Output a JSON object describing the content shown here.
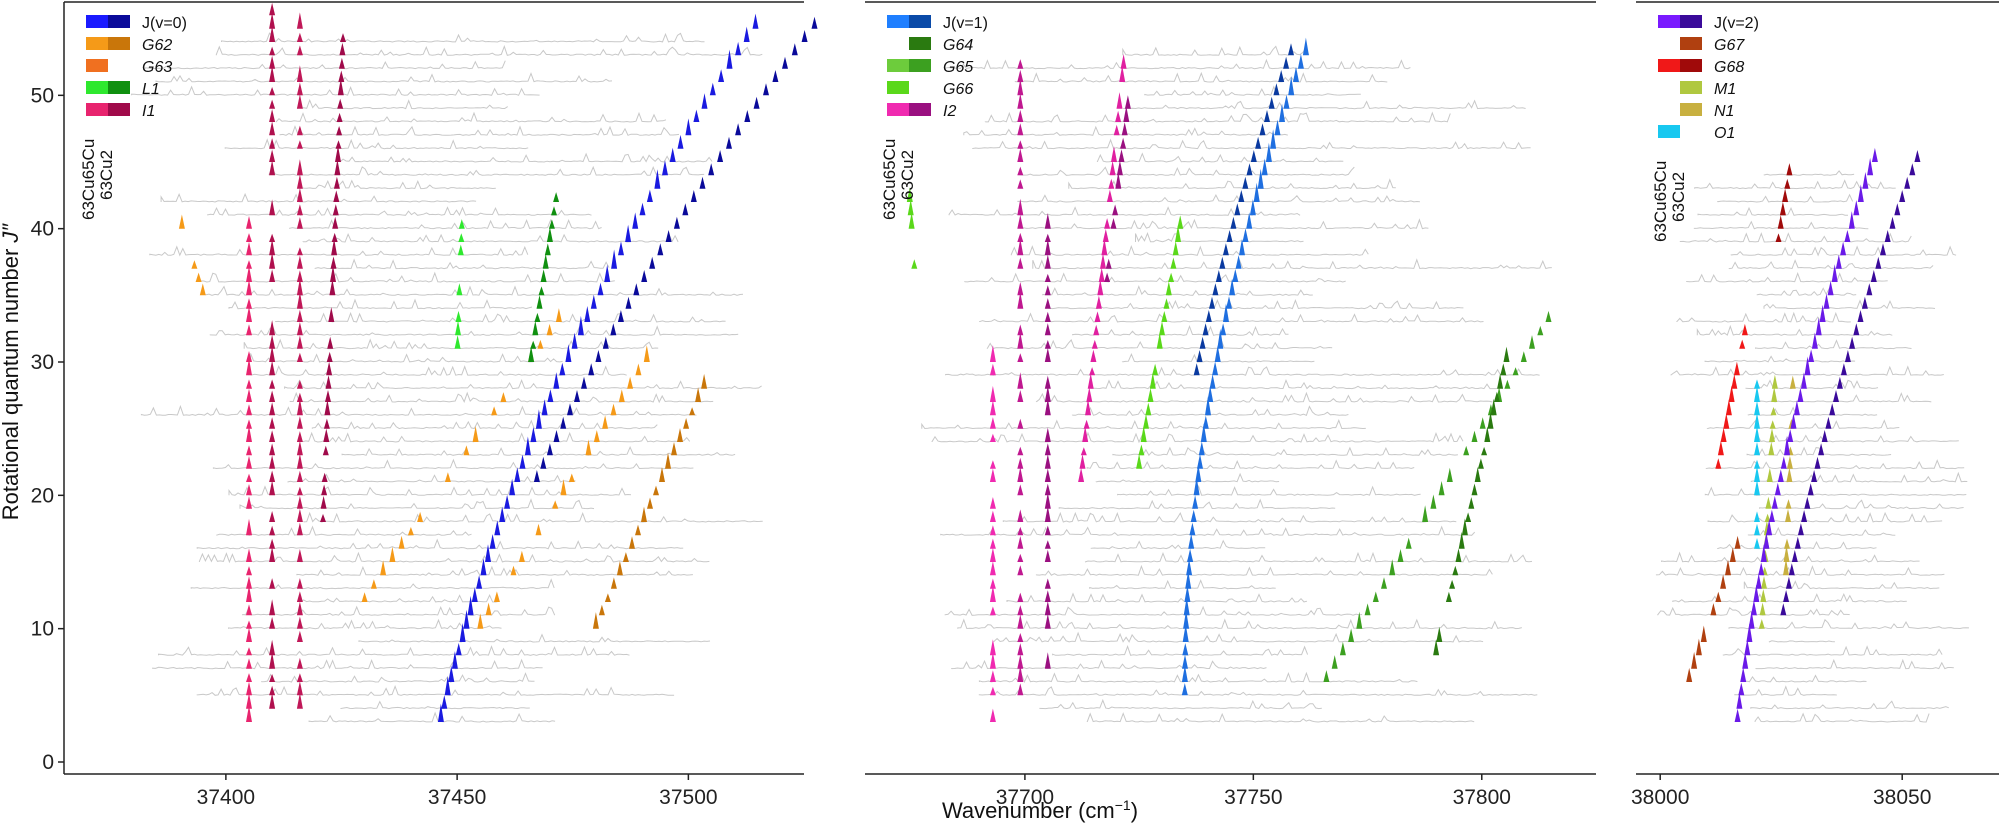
{
  "chart_data": {
    "type": "scatter",
    "description_axis": {
      "xlabel_main": "Wavenumber (cm",
      "xlabel_sup": "−1",
      "xlabel_end": ")",
      "ylabel_main": "Rotational quantum number ",
      "ylabel_J": "J″",
      "ylim": [
        0,
        57
      ],
      "yticks": [
        0,
        10,
        20,
        30,
        40,
        50
      ]
    },
    "panels": [
      {
        "xlim": [
          37365,
          37525
        ],
        "xticks": [
          37400,
          37450,
          37500
        ],
        "jrange": [
          3,
          54
        ],
        "band": {
          "name": "J(v=0)",
          "x0": 37446.5,
          "slope": 0.71,
          "curv": 0.0115,
          "jmin": 3,
          "jmax": 55,
          "color": "#1a1ae0",
          "color2": "#0a0a9a"
        },
        "legend": [
          {
            "label": "J(v=0)",
            "c1": "#1a1aff",
            "c2": "#0a0a9a",
            "italic": false
          },
          {
            "label": "G62",
            "c1": "#f59a18",
            "c2": "#c9760a",
            "italic": true
          },
          {
            "label": "G63",
            "c1": "#f07020",
            "c2": "",
            "italic": true
          },
          {
            "label": "L1",
            "c1": "#2ee82e",
            "c2": "#109010",
            "italic": true
          },
          {
            "label": "I1",
            "c1": "#e8246e",
            "c2": "#a00a4a",
            "italic": true
          }
        ],
        "iso_top": "63Cu65Cu",
        "iso_bottom": "63Cu2",
        "clusters": [
          {
            "x0": 37405,
            "dx": 0.0,
            "j0": 3,
            "j1": 40,
            "color": "#e8246e"
          },
          {
            "x0": 37410,
            "dx": 0.0,
            "j0": 3,
            "j1": 56,
            "color": "#b0104e"
          },
          {
            "x0": 37416,
            "dx": 0.0,
            "j0": 4,
            "j1": 55,
            "color": "#c01858"
          },
          {
            "x0": 37421,
            "dx": 0.12,
            "j0": 18,
            "j1": 54,
            "color": "#a00a4a"
          },
          {
            "x0": 37395,
            "dx": -0.9,
            "j0": 35,
            "j1": 40,
            "color": "#f59a18"
          },
          {
            "x0": 37430,
            "dx": 2.0,
            "j0": 12,
            "j1": 33,
            "color": "#f59a18"
          },
          {
            "x0": 37455,
            "dx": 1.8,
            "j0": 10,
            "j1": 30,
            "color": "#f59a18"
          },
          {
            "x0": 37480,
            "dx": 1.3,
            "j0": 10,
            "j1": 28,
            "color": "#c9760a"
          },
          {
            "x0": 37450,
            "dx": 0.1,
            "j0": 30,
            "j1": 40,
            "color": "#2ee82e"
          },
          {
            "x0": 37466,
            "dx": 0.45,
            "j0": 30,
            "j1": 42,
            "color": "#109010"
          }
        ]
      },
      {
        "xlim": [
          37665,
          37825
        ],
        "xticks": [
          37700,
          37750,
          37800
        ],
        "jrange": [
          3,
          53
        ],
        "band": {
          "name": "J(v=1)",
          "x0": 37735,
          "slope": 0.0,
          "curv": 0.0115,
          "jmin": 5,
          "jmax": 53,
          "color": "#1f6fe0",
          "color2": "#0a3aa0"
        },
        "legend": [
          {
            "label": "J(v=1)",
            "c1": "#1f7fff",
            "c2": "#0a4aa8",
            "italic": false
          },
          {
            "label": "G64",
            "c1": "",
            "c2": "#2a7a10",
            "italic": true
          },
          {
            "label": "G65",
            "c1": "#6dcc3c",
            "c2": "#3ca020",
            "italic": true
          },
          {
            "label": "G66",
            "c1": "#5ad81a",
            "c2": "",
            "italic": true
          },
          {
            "label": "I2",
            "c1": "#f02ab0",
            "c2": "#9a1080",
            "italic": true
          }
        ],
        "iso_top": "63Cu65Cu",
        "iso_bottom": "63Cu2",
        "clusters": [
          {
            "x0": 37693,
            "dx": 0.0,
            "j0": 3,
            "j1": 30,
            "color": "#f02ab0"
          },
          {
            "x0": 37699,
            "dx": 0.0,
            "j0": 5,
            "j1": 52,
            "color": "#c01890"
          },
          {
            "x0": 37705,
            "dx": 0.0,
            "j0": 6,
            "j1": 40,
            "color": "#9a1080"
          },
          {
            "x0": 37712,
            "dx": 0.3,
            "j0": 20,
            "j1": 52,
            "color": "#e020a0"
          },
          {
            "x0": 37718,
            "dx": 0.35,
            "j0": 36,
            "j1": 50,
            "color": "#9a1080"
          },
          {
            "x0": 37676,
            "dx": -0.2,
            "j0": 36,
            "j1": 42,
            "color": "#5ad81a"
          },
          {
            "x0": 37725,
            "dx": 0.5,
            "j0": 22,
            "j1": 40,
            "color": "#5ad81a"
          },
          {
            "x0": 37766,
            "dx": 1.8,
            "j0": 6,
            "j1": 33,
            "color": "#3ca020"
          },
          {
            "x0": 37790,
            "dx": 0.7,
            "j0": 8,
            "j1": 30,
            "color": "#2a7a10"
          }
        ]
      },
      {
        "xlim": [
          37995,
          38070
        ],
        "xticks": [
          38000,
          38050
        ],
        "jrange": [
          3,
          44
        ],
        "band": {
          "name": "J(v=2)",
          "x0": 38016,
          "slope": 0.36,
          "curv": 0.0075,
          "jmin": 3,
          "jmax": 45,
          "color": "#6a1ae8",
          "color2": "#3a0a9a"
        },
        "legend": [
          {
            "label": "J(v=2)",
            "c1": "#7a1aff",
            "c2": "#3a0a9a",
            "italic": false
          },
          {
            "label": "G67",
            "c1": "",
            "c2": "#b04010",
            "italic": true
          },
          {
            "label": "G68",
            "c1": "#f01818",
            "c2": "#a00a0a",
            "italic": true
          },
          {
            "label": "M1",
            "c1": "",
            "c2": "#b0c840",
            "italic": true
          },
          {
            "label": "N1",
            "c1": "",
            "c2": "#c8b040",
            "italic": true
          },
          {
            "label": "O1",
            "c1": "#18c8f0",
            "c2": "",
            "italic": true
          }
        ],
        "iso_top": "63Cu65Cu",
        "iso_bottom": "63Cu2",
        "clusters": [
          {
            "x0": 38005,
            "dx": 1.0,
            "j0": 5,
            "j1": 16,
            "color": "#b04010"
          },
          {
            "x0": 38012,
            "dx": 0.55,
            "j0": 22,
            "j1": 32,
            "color": "#f01818"
          },
          {
            "x0": 38024,
            "dx": 0.45,
            "j0": 38,
            "j1": 44,
            "color": "#a00a0a"
          },
          {
            "x0": 38021,
            "dx": 0.15,
            "j0": 10,
            "j1": 30,
            "color": "#b0c840"
          },
          {
            "x0": 38026,
            "dx": 0.1,
            "j0": 14,
            "j1": 28,
            "color": "#c8b040"
          },
          {
            "x0": 38020,
            "dx": 0.0,
            "j0": 16,
            "j1": 28,
            "color": "#18c8f0"
          }
        ]
      }
    ]
  }
}
